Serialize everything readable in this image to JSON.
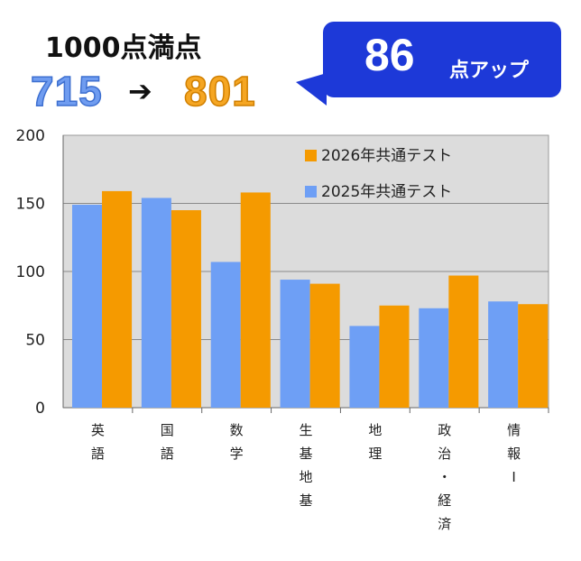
{
  "header": {
    "title": "1000点満点",
    "score_before": "715",
    "arrow": "➔",
    "score_after": "801",
    "gain": "86",
    "gain_label": "点アップ"
  },
  "colors": {
    "series_2026": "#f59a00",
    "series_2025": "#6e9ff5",
    "plot_bg": "#dcdcdc",
    "callout": "#1d39d8"
  },
  "chart_data": {
    "type": "bar",
    "categories": [
      "英語",
      "国語",
      "数学",
      "生基地基",
      "地理",
      "政治・経済",
      "情報I"
    ],
    "category_labels": [
      [
        "英",
        "語"
      ],
      [
        "国",
        "語"
      ],
      [
        "数",
        "学"
      ],
      [
        "生",
        "基",
        "地",
        "基"
      ],
      [
        "地",
        "理"
      ],
      [
        "政",
        "治",
        "・",
        "経",
        "済"
      ],
      [
        "情",
        "報",
        "I"
      ]
    ],
    "series": [
      {
        "name": "2025年共通テスト",
        "values": [
          149,
          154,
          107,
          94,
          60,
          73,
          78
        ]
      },
      {
        "name": "2026年共通テスト",
        "values": [
          159,
          145,
          158,
          91,
          75,
          97,
          76
        ]
      }
    ],
    "ylim": [
      0,
      200
    ],
    "yticks": [
      "0",
      "50",
      "100",
      "150",
      "200"
    ],
    "grid": true,
    "legend": "top-right"
  }
}
